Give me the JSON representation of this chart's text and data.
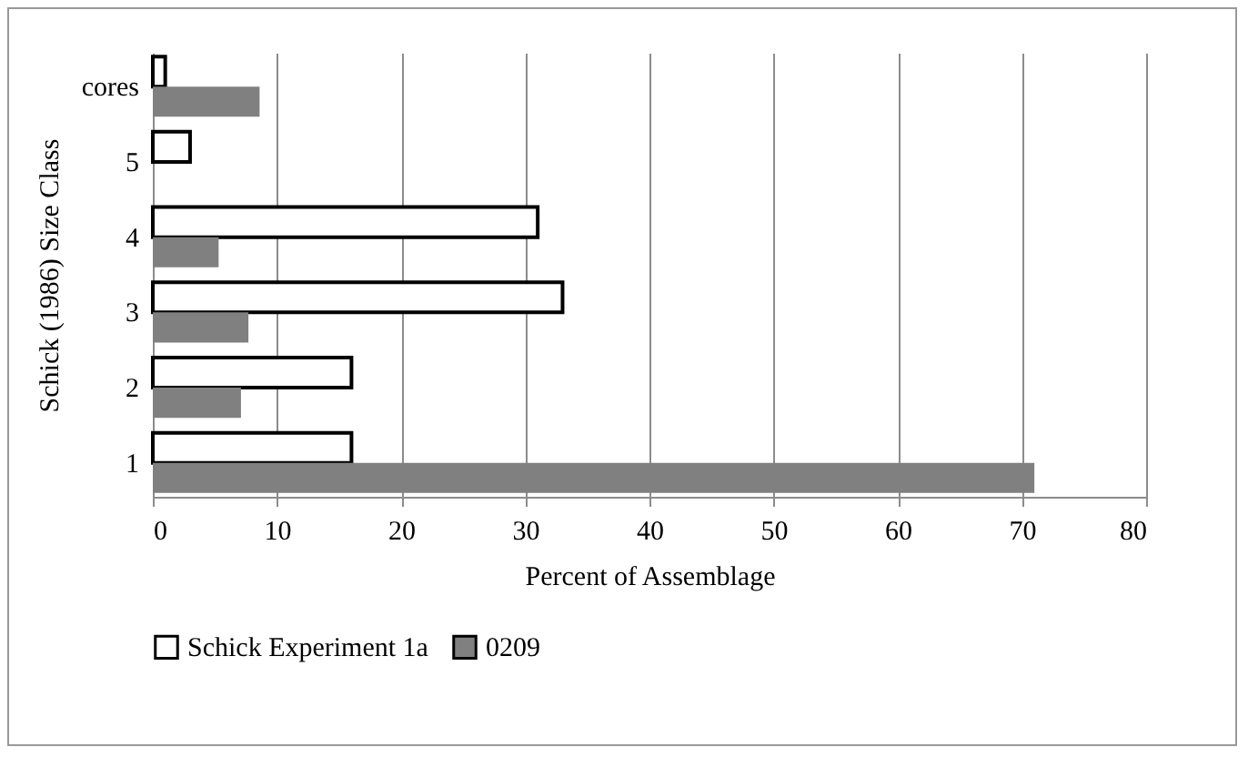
{
  "chart_data": {
    "type": "bar",
    "orientation": "horizontal",
    "xlabel": "Percent of Assemblage",
    "ylabel": "Schick (1986) Size Class",
    "categories": [
      "cores",
      "5",
      "4",
      "3",
      "2",
      "1"
    ],
    "series": [
      {
        "name": "Schick Experiment 1a",
        "color": "#ffffff",
        "values": [
          1,
          3,
          31,
          33,
          16,
          16
        ]
      },
      {
        "name": "0209",
        "color": "#808080",
        "values": [
          8.6,
          null,
          5.3,
          7.7,
          7.1,
          71
        ]
      }
    ],
    "xlim": [
      0,
      80
    ],
    "xticks": [
      0,
      10,
      20,
      30,
      40,
      50,
      60,
      70,
      80
    ],
    "grid": "x",
    "legend": "bottom"
  }
}
